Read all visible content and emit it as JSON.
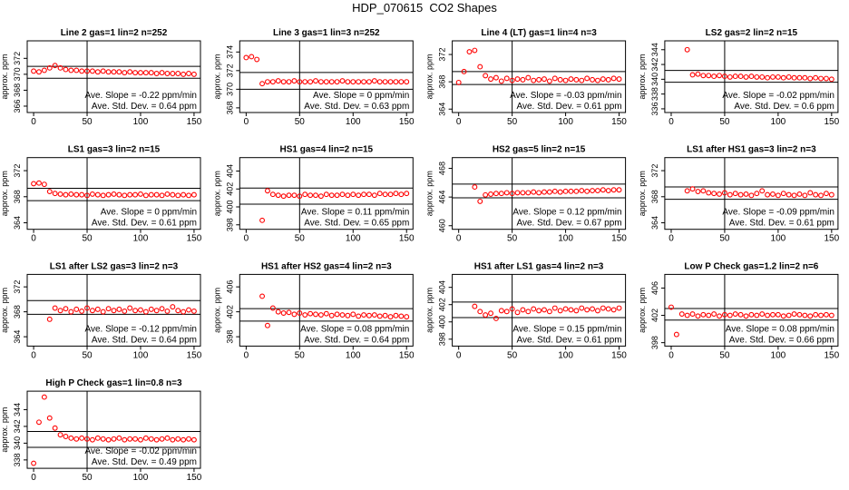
{
  "title": "HDP_070615  CO2 Shapes",
  "chart_data": [
    {
      "type": "scatter",
      "title": "Line 2 gas=1 lin=2 n=252",
      "ylabel": "approx. ppm",
      "color": "#ff0000",
      "x": [
        0,
        5,
        10,
        15,
        20,
        25,
        30,
        35,
        40,
        45,
        50,
        55,
        60,
        65,
        70,
        75,
        80,
        85,
        90,
        95,
        100,
        105,
        110,
        115,
        120,
        125,
        130,
        135,
        140,
        145,
        150
      ],
      "values": [
        370.4,
        370.3,
        370.5,
        370.8,
        371.1,
        370.8,
        370.6,
        370.5,
        370.5,
        370.4,
        370.4,
        370.4,
        370.3,
        370.4,
        370.3,
        370.3,
        370.3,
        370.2,
        370.3,
        370.2,
        370.2,
        370.2,
        370.2,
        370.1,
        370.2,
        370.1,
        370.1,
        370.1,
        370.0,
        370.1,
        370.0
      ],
      "xlim": [
        -6,
        156
      ],
      "ylim": [
        365.2,
        374.2
      ],
      "xticks": [
        0,
        50,
        100,
        150
      ],
      "yticks": [
        366,
        368,
        370,
        372
      ],
      "hlines": [
        371.0,
        369.5
      ],
      "vline": 50,
      "annotations": [
        "Ave. Slope = -0.22 ppm/min",
        "Ave. Std. Dev. = 0.64 ppm"
      ]
    },
    {
      "type": "scatter",
      "title": "Line 3 gas=1 lin=3 n=252",
      "ylabel": "approx. ppm",
      "color": "#ff0000",
      "x": [
        0,
        5,
        10,
        15,
        20,
        25,
        30,
        35,
        40,
        45,
        50,
        55,
        60,
        65,
        70,
        75,
        80,
        85,
        90,
        95,
        100,
        105,
        110,
        115,
        120,
        125,
        130,
        135,
        140,
        145,
        150
      ],
      "values": [
        373.4,
        373.5,
        373.2,
        370.6,
        370.8,
        370.8,
        370.9,
        370.8,
        370.8,
        370.9,
        370.8,
        370.8,
        370.8,
        370.9,
        370.8,
        370.8,
        370.8,
        370.8,
        370.9,
        370.8,
        370.8,
        370.8,
        370.8,
        370.8,
        370.9,
        370.8,
        370.8,
        370.8,
        370.8,
        370.8,
        370.8
      ],
      "xlim": [
        -6,
        156
      ],
      "ylim": [
        367.5,
        375.2
      ],
      "xticks": [
        0,
        50,
        100,
        150
      ],
      "yticks": [
        368,
        370,
        372,
        374
      ],
      "hlines": [
        371.8,
        370.0
      ],
      "vline": 50,
      "annotations": [
        "Ave. Slope = 0 ppm/min",
        "Ave. Std. Dev. = 0.63 ppm"
      ]
    },
    {
      "type": "scatter",
      "title": "Line 4 (LT) gas=1 lin=4 n=3",
      "ylabel": "approx. ppm",
      "color": "#ff0000",
      "x": [
        0,
        5,
        10,
        15,
        20,
        25,
        30,
        35,
        40,
        45,
        50,
        55,
        60,
        65,
        70,
        75,
        80,
        85,
        90,
        95,
        100,
        105,
        110,
        115,
        120,
        125,
        130,
        135,
        140,
        145,
        150
      ],
      "values": [
        367.9,
        369.5,
        372.4,
        372.6,
        370.2,
        368.9,
        368.4,
        368.6,
        368.1,
        368.5,
        368.2,
        368.4,
        368.3,
        368.6,
        368.2,
        368.3,
        368.4,
        368.1,
        368.5,
        368.3,
        368.2,
        368.4,
        368.3,
        368.2,
        368.5,
        368.3,
        368.2,
        368.4,
        368.3,
        368.5,
        368.4
      ],
      "xlim": [
        -6,
        156
      ],
      "ylim": [
        363.5,
        374
      ],
      "xticks": [
        0,
        50,
        100,
        150
      ],
      "yticks": [
        364,
        368,
        372
      ],
      "hlines": [
        369.5,
        367.6
      ],
      "vline": 50,
      "annotations": [
        "Ave. Slope = -0.03 ppm/min",
        "Ave. Std. Dev. = 0.61 ppm"
      ]
    },
    {
      "type": "scatter",
      "title": "LS2 gas=2 lin=2 n=15",
      "ylabel": "approx. ppm",
      "color": "#ff0000",
      "x": [
        15,
        20,
        25,
        30,
        35,
        40,
        45,
        50,
        55,
        60,
        65,
        70,
        75,
        80,
        85,
        90,
        95,
        100,
        105,
        110,
        115,
        120,
        125,
        130,
        135,
        140,
        145,
        150
      ],
      "values": [
        344.0,
        340.6,
        340.7,
        340.5,
        340.5,
        340.4,
        340.5,
        340.4,
        340.3,
        340.4,
        340.4,
        340.3,
        340.4,
        340.3,
        340.3,
        340.2,
        340.3,
        340.3,
        340.2,
        340.3,
        340.2,
        340.2,
        340.2,
        340.1,
        340.2,
        340.1,
        340.1,
        340.0
      ],
      "xlim": [
        -6,
        156
      ],
      "ylim": [
        335.5,
        345.2
      ],
      "xticks": [
        0,
        50,
        100,
        150
      ],
      "yticks": [
        336,
        338,
        340,
        342,
        344
      ],
      "hlines": [
        341.2,
        339.6
      ],
      "vline": 50,
      "annotations": [
        "Ave. Slope = -0.02 ppm/min",
        "Ave. Std. Dev. = 0.6 ppm"
      ]
    },
    {
      "type": "scatter",
      "title": "LS1 gas=3 lin=2 n=15",
      "ylabel": "approx. ppm",
      "color": "#ff0000",
      "x": [
        0,
        5,
        10,
        15,
        20,
        25,
        30,
        35,
        40,
        45,
        50,
        55,
        60,
        65,
        70,
        75,
        80,
        85,
        90,
        95,
        100,
        105,
        110,
        115,
        120,
        125,
        130,
        135,
        140,
        145,
        150
      ],
      "values": [
        370.0,
        370.1,
        369.9,
        368.8,
        368.5,
        368.4,
        368.3,
        368.4,
        368.3,
        368.3,
        368.2,
        368.4,
        368.3,
        368.2,
        368.3,
        368.4,
        368.3,
        368.2,
        368.3,
        368.3,
        368.4,
        368.2,
        368.3,
        368.3,
        368.2,
        368.4,
        368.3,
        368.2,
        368.3,
        368.2,
        368.3
      ],
      "xlim": [
        -6,
        156
      ],
      "ylim": [
        363,
        374
      ],
      "xticks": [
        0,
        50,
        100,
        150
      ],
      "yticks": [
        364,
        368,
        372
      ],
      "hlines": [
        369.3,
        367.4
      ],
      "vline": 50,
      "annotations": [
        "Ave. Slope = 0 ppm/min",
        "Ave. Std. Dev. = 0.61 ppm"
      ]
    },
    {
      "type": "scatter",
      "title": "HS1 gas=4 lin=2 n=15",
      "ylabel": "approx. ppm",
      "color": "#ff0000",
      "x": [
        15,
        20,
        25,
        30,
        35,
        40,
        45,
        50,
        55,
        60,
        65,
        70,
        75,
        80,
        85,
        90,
        95,
        100,
        105,
        110,
        115,
        120,
        125,
        130,
        135,
        140,
        145,
        150
      ],
      "values": [
        398.5,
        401.8,
        401.4,
        401.3,
        401.2,
        401.3,
        401.3,
        401.2,
        401.4,
        401.3,
        401.3,
        401.2,
        401.4,
        401.3,
        401.3,
        401.4,
        401.3,
        401.4,
        401.3,
        401.4,
        401.4,
        401.3,
        401.5,
        401.4,
        401.4,
        401.5,
        401.4,
        401.5
      ],
      "xlim": [
        -6,
        156
      ],
      "ylim": [
        397.5,
        405.5
      ],
      "xticks": [
        0,
        50,
        100,
        150
      ],
      "yticks": [
        398,
        400,
        402,
        404
      ],
      "hlines": [
        402.1,
        400.3
      ],
      "vline": 50,
      "annotations": [
        "Ave. Slope = 0.11 ppm/min",
        "Ave. Std. Dev. = 0.65 ppm"
      ]
    },
    {
      "type": "scatter",
      "title": "HS2 gas=5 lin=2 n=15",
      "ylabel": "approx. ppm",
      "color": "#ff0000",
      "x": [
        15,
        20,
        25,
        30,
        35,
        40,
        45,
        50,
        55,
        60,
        65,
        70,
        75,
        80,
        85,
        90,
        95,
        100,
        105,
        110,
        115,
        120,
        125,
        130,
        135,
        140,
        145,
        150
      ],
      "values": [
        465.4,
        463.4,
        464.3,
        464.4,
        464.5,
        464.5,
        464.6,
        464.5,
        464.6,
        464.6,
        464.6,
        464.7,
        464.6,
        464.7,
        464.7,
        464.8,
        464.7,
        464.8,
        464.8,
        464.8,
        464.9,
        464.8,
        464.9,
        464.9,
        465.0,
        464.9,
        465.0,
        465.0
      ],
      "xlim": [
        -6,
        156
      ],
      "ylim": [
        459.5,
        469.5
      ],
      "xticks": [
        0,
        50,
        100,
        150
      ],
      "yticks": [
        460,
        464,
        468
      ],
      "hlines": [
        465.8,
        463.9
      ],
      "vline": 50,
      "annotations": [
        "Ave. Slope = 0.12 ppm/min",
        "Ave. Std. Dev. = 0.67 ppm"
      ]
    },
    {
      "type": "scatter",
      "title": "LS1 after HS1 gas=3 lin=2 n=3",
      "ylabel": "approx. ppm",
      "color": "#ff0000",
      "x": [
        15,
        20,
        25,
        30,
        35,
        40,
        45,
        50,
        55,
        60,
        65,
        70,
        75,
        80,
        85,
        90,
        95,
        100,
        105,
        110,
        115,
        120,
        125,
        130,
        135,
        140,
        145,
        150
      ],
      "values": [
        368.9,
        369.2,
        368.8,
        368.9,
        368.6,
        368.5,
        368.4,
        368.6,
        368.3,
        368.5,
        368.3,
        368.4,
        368.2,
        368.5,
        368.9,
        368.3,
        368.4,
        368.2,
        368.5,
        368.3,
        368.2,
        368.4,
        368.2,
        368.6,
        368.3,
        368.2,
        368.5,
        368.3
      ],
      "xlim": [
        -6,
        156
      ],
      "ylim": [
        363,
        374
      ],
      "xticks": [
        0,
        50,
        100,
        150
      ],
      "yticks": [
        364,
        368,
        372
      ],
      "hlines": [
        369.5,
        367.6
      ],
      "vline": 50,
      "annotations": [
        "Ave. Slope = -0.09 ppm/min",
        "Ave. Std. Dev. = 0.61 ppm"
      ]
    },
    {
      "type": "scatter",
      "title": "LS1 after LS2 gas=3 lin=2 n=3",
      "ylabel": "approx. ppm",
      "color": "#ff0000",
      "x": [
        15,
        20,
        25,
        30,
        35,
        40,
        45,
        50,
        55,
        60,
        65,
        70,
        75,
        80,
        85,
        90,
        95,
        100,
        105,
        110,
        115,
        120,
        125,
        130,
        135,
        140,
        145,
        150
      ],
      "values": [
        366.8,
        368.6,
        368.2,
        368.5,
        368.0,
        368.4,
        368.1,
        368.6,
        368.2,
        368.4,
        368.0,
        368.5,
        368.2,
        368.4,
        368.1,
        368.6,
        368.2,
        368.3,
        368.0,
        368.4,
        368.2,
        368.5,
        368.1,
        368.8,
        368.2,
        368.0,
        368.3,
        368.1
      ],
      "xlim": [
        -6,
        156
      ],
      "ylim": [
        362.5,
        374
      ],
      "xticks": [
        0,
        50,
        100,
        150
      ],
      "yticks": [
        364,
        368,
        372
      ],
      "hlines": [
        369.8,
        367.6
      ],
      "vline": 50,
      "annotations": [
        "Ave. Slope = -0.12 ppm/min",
        "Ave. Std. Dev. = 0.64 ppm"
      ]
    },
    {
      "type": "scatter",
      "title": "HS1 after HS2 gas=4 lin=2 n=3",
      "ylabel": "approx. ppm",
      "color": "#ff0000",
      "x": [
        15,
        20,
        25,
        30,
        35,
        40,
        45,
        50,
        55,
        60,
        65,
        70,
        75,
        80,
        85,
        90,
        95,
        100,
        105,
        110,
        115,
        120,
        125,
        130,
        135,
        140,
        145,
        150
      ],
      "values": [
        404.5,
        399.8,
        402.6,
        402.0,
        401.8,
        401.9,
        401.6,
        401.8,
        401.5,
        401.7,
        401.6,
        401.5,
        401.7,
        401.4,
        401.6,
        401.5,
        401.4,
        401.6,
        401.3,
        401.5,
        401.4,
        401.5,
        401.3,
        401.4,
        401.2,
        401.4,
        401.3,
        401.2
      ],
      "xlim": [
        -6,
        156
      ],
      "ylim": [
        396.5,
        408
      ],
      "xticks": [
        0,
        50,
        100,
        150
      ],
      "yticks": [
        398,
        402,
        406
      ],
      "hlines": [
        402.5,
        400.5
      ],
      "vline": 50,
      "annotations": [
        "Ave. Slope = 0.08 ppm/min",
        "Ave. Std. Dev. = 0.64 ppm"
      ]
    },
    {
      "type": "scatter",
      "title": "HS1 after LS1 gas=4 lin=2 n=3",
      "ylabel": "approx. ppm",
      "color": "#ff0000",
      "x": [
        15,
        20,
        25,
        30,
        35,
        40,
        45,
        50,
        55,
        60,
        65,
        70,
        75,
        80,
        85,
        90,
        95,
        100,
        105,
        110,
        115,
        120,
        125,
        130,
        135,
        140,
        145,
        150
      ],
      "values": [
        401.8,
        401.2,
        400.8,
        401.0,
        400.4,
        401.3,
        401.2,
        401.5,
        401.1,
        401.4,
        401.2,
        401.5,
        401.3,
        401.4,
        401.2,
        401.6,
        401.3,
        401.5,
        401.4,
        401.3,
        401.6,
        401.4,
        401.5,
        401.3,
        401.6,
        401.5,
        401.4,
        401.6
      ],
      "xlim": [
        -6,
        156
      ],
      "ylim": [
        397.2,
        405.5
      ],
      "xticks": [
        0,
        50,
        100,
        150
      ],
      "yticks": [
        398,
        400,
        402,
        404
      ],
      "hlines": [
        402.3,
        400.5
      ],
      "vline": 50,
      "annotations": [
        "Ave. Slope = 0.15 ppm/min",
        "Ave. Std. Dev. = 0.61 ppm"
      ]
    },
    {
      "type": "scatter",
      "title": "Low P Check gas=1.2 lin=2 n=6",
      "ylabel": "approx. ppm",
      "color": "#ff0000",
      "x": [
        0,
        5,
        10,
        15,
        20,
        25,
        30,
        35,
        40,
        45,
        50,
        55,
        60,
        65,
        70,
        75,
        80,
        85,
        90,
        95,
        100,
        105,
        110,
        115,
        120,
        125,
        130,
        135,
        140,
        145,
        150
      ],
      "values": [
        403.2,
        399.2,
        402.2,
        402.0,
        402.2,
        401.9,
        402.1,
        402.0,
        402.2,
        401.9,
        402.1,
        402.0,
        402.2,
        402.1,
        401.9,
        402.1,
        402.0,
        402.2,
        402.0,
        402.1,
        402.1,
        401.9,
        402.0,
        402.2,
        402.1,
        402.0,
        401.9,
        402.1,
        402.0,
        402.1,
        402.0
      ],
      "xlim": [
        -6,
        156
      ],
      "ylim": [
        397.5,
        408
      ],
      "xticks": [
        0,
        50,
        100,
        150
      ],
      "yticks": [
        398,
        402,
        406
      ],
      "hlines": [
        403.0,
        401.3
      ],
      "vline": 50,
      "annotations": [
        "Ave. Slope = 0.08 ppm/min",
        "Ave. Std. Dev. = 0.66 ppm"
      ]
    },
    {
      "type": "scatter",
      "title": "High P Check gas=1 lin=0.8 n=3",
      "ylabel": "approx. ppm",
      "color": "#ff0000",
      "x": [
        0,
        5,
        10,
        15,
        20,
        25,
        30,
        35,
        40,
        45,
        50,
        55,
        60,
        65,
        70,
        75,
        80,
        85,
        90,
        95,
        100,
        105,
        110,
        115,
        120,
        125,
        130,
        135,
        140,
        145,
        150
      ],
      "values": [
        337.6,
        342.5,
        345.5,
        343.0,
        341.8,
        341.0,
        340.8,
        340.6,
        340.5,
        340.6,
        340.5,
        340.4,
        340.6,
        340.5,
        340.4,
        340.5,
        340.6,
        340.4,
        340.5,
        340.5,
        340.4,
        340.6,
        340.5,
        340.4,
        340.5,
        340.6,
        340.4,
        340.5,
        340.4,
        340.5,
        340.4
      ],
      "xlim": [
        -6,
        156
      ],
      "ylim": [
        337,
        346.2
      ],
      "xticks": [
        0,
        50,
        100,
        150
      ],
      "yticks": [
        338,
        340,
        342,
        344
      ],
      "hlines": [
        341.4,
        339.5
      ],
      "vline": 50,
      "annotations": [
        "Ave. Slope = -0.02 ppm/min",
        "Ave. Std. Dev. = 0.49 ppm"
      ]
    }
  ]
}
